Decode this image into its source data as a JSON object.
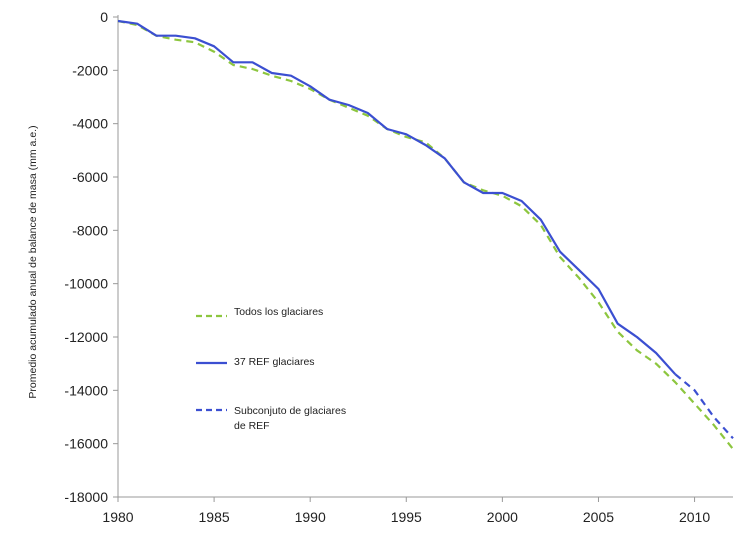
{
  "chart_data": {
    "type": "line",
    "title": "",
    "xlabel": "",
    "ylabel": "Promedio acumulado anual de balance de masa (mm a.e.)",
    "xlim": [
      1980,
      2012
    ],
    "ylim": [
      -18000,
      0
    ],
    "xticks": [
      1980,
      1985,
      1990,
      1995,
      2000,
      2005,
      2010
    ],
    "yticks": [
      0,
      -2000,
      -4000,
      -6000,
      -8000,
      -10000,
      -12000,
      -14000,
      -16000,
      -18000
    ],
    "grid": false,
    "legend_position": "left-center",
    "colors": {
      "todos": "#8dc63f",
      "ref": "#3b4fd1",
      "subconjunto": "#3b4fd1",
      "axis": "#999999"
    },
    "series": [
      {
        "name": "Todos los glaciares",
        "style": "dashed",
        "x": [
          1980,
          1981,
          1982,
          1983,
          1984,
          1985,
          1986,
          1987,
          1988,
          1989,
          1990,
          1991,
          1992,
          1993,
          1994,
          1995,
          1996,
          1997,
          1998,
          1999,
          2000,
          2001,
          2002,
          2003,
          2004,
          2005,
          2006,
          2007,
          2008,
          2009,
          2010,
          2011,
          2012
        ],
        "values": [
          -150,
          -300,
          -700,
          -850,
          -950,
          -1300,
          -1800,
          -1950,
          -2200,
          -2400,
          -2700,
          -3100,
          -3400,
          -3700,
          -4200,
          -4500,
          -4700,
          -5300,
          -6200,
          -6500,
          -6700,
          -7100,
          -7800,
          -9000,
          -9800,
          -10700,
          -11800,
          -12500,
          -13000,
          -13700,
          -14500,
          -15300,
          -16200
        ]
      },
      {
        "name": "37 REF glaciares",
        "style": "solid",
        "x": [
          1980,
          1981,
          1982,
          1983,
          1984,
          1985,
          1986,
          1987,
          1988,
          1989,
          1990,
          1991,
          1992,
          1993,
          1994,
          1995,
          1996,
          1997,
          1998,
          1999,
          2000,
          2001,
          2002,
          2003,
          2004,
          2005,
          2006,
          2007,
          2008,
          2009
        ],
        "values": [
          -150,
          -250,
          -700,
          -700,
          -800,
          -1100,
          -1700,
          -1700,
          -2100,
          -2200,
          -2600,
          -3100,
          -3300,
          -3600,
          -4200,
          -4400,
          -4800,
          -5300,
          -6200,
          -6600,
          -6600,
          -6900,
          -7600,
          -8800,
          -9500,
          -10200,
          -11500,
          -12000,
          -12600,
          -13400
        ]
      },
      {
        "name": "Subconjuto de glaciares de REF",
        "style": "dashed",
        "x": [
          2009,
          2010,
          2011,
          2012
        ],
        "values": [
          -13400,
          -14000,
          -15000,
          -15800
        ]
      }
    ],
    "legend": {
      "todos": "Todos los glaciares",
      "ref": "37 REF glaciares",
      "subconjunto_line1": "Subconjuto de glaciares",
      "subconjunto_line2": "de REF"
    }
  }
}
